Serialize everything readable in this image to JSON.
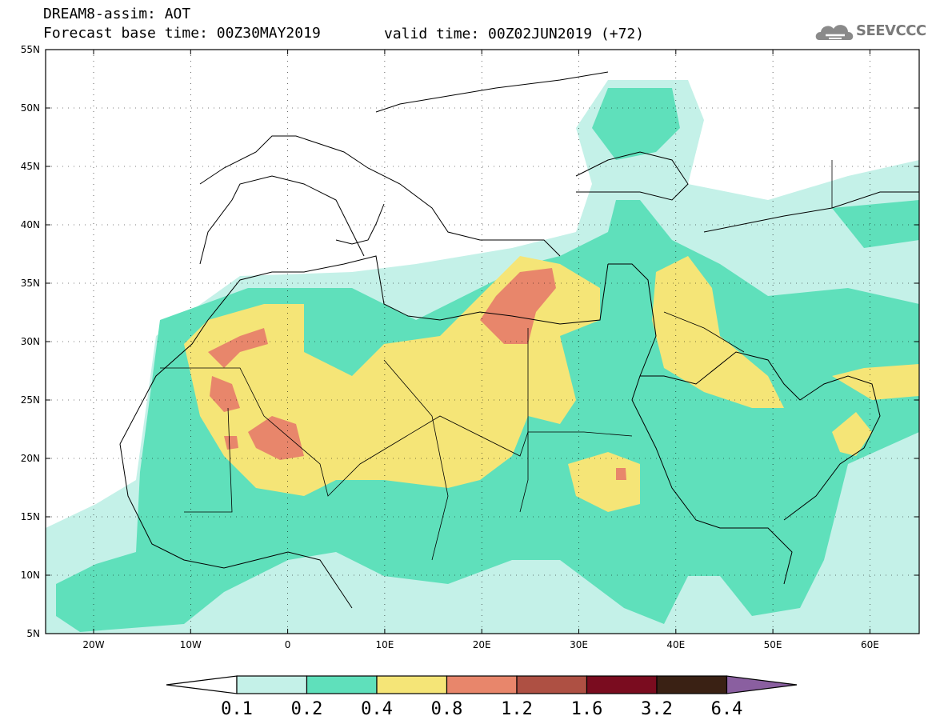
{
  "header": {
    "line1": "DREAM8-assim: AOT",
    "line2_base": "Forecast base time: 00Z30MAY2019",
    "line2_valid": "valid time: 00Z02JUN2019 (+72)"
  },
  "logo": {
    "text": "SEEVCCC",
    "icon": "cloud-icon"
  },
  "axes": {
    "lat_labels": [
      "55N",
      "50N",
      "45N",
      "40N",
      "35N",
      "30N",
      "25N",
      "20N",
      "15N",
      "10N",
      "5N"
    ],
    "lon_labels": [
      "20W",
      "10W",
      "0",
      "10E",
      "20E",
      "30E",
      "40E",
      "50E",
      "60E"
    ]
  },
  "colorbar": {
    "colors": [
      "#ffffff",
      "#c4f1e8",
      "#5fe0bb",
      "#f5e577",
      "#e8866b",
      "#ae5043",
      "#7a0c1f",
      "#3a2114",
      "#8a5fa0"
    ],
    "labels": [
      "0.1",
      "0.2",
      "0.4",
      "0.8",
      "1.2",
      "1.6",
      "3.2",
      "6.4"
    ]
  }
}
